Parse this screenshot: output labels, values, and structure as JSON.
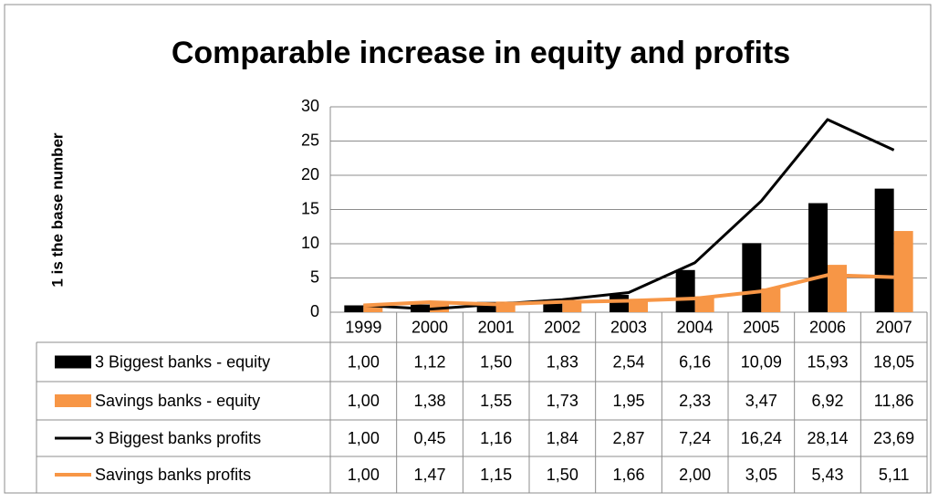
{
  "chart_data": {
    "type": "bar",
    "title": "Comparable increase in equity and profits",
    "y_label": "1 is the base number",
    "categories": [
      "1999",
      "2000",
      "2001",
      "2002",
      "2003",
      "2004",
      "2005",
      "2006",
      "2007"
    ],
    "ylim": [
      0,
      30
    ],
    "yticks": [
      0,
      5,
      10,
      15,
      20,
      25,
      30
    ],
    "grid": true,
    "series": [
      {
        "name": "3 Biggest banks - equity",
        "type": "bar",
        "color": "#000000",
        "values": [
          1.0,
          1.12,
          1.5,
          1.83,
          2.54,
          6.16,
          10.09,
          15.93,
          18.05
        ],
        "value_labels": [
          "1,00",
          "1,12",
          "1,50",
          "1,83",
          "2,54",
          "6,16",
          "10,09",
          "15,93",
          "18,05"
        ]
      },
      {
        "name": "Savings banks - equity",
        "type": "bar",
        "color": "#f79646",
        "values": [
          1.0,
          1.38,
          1.55,
          1.73,
          1.95,
          2.33,
          3.47,
          6.92,
          11.86
        ],
        "value_labels": [
          "1,00",
          "1,38",
          "1,55",
          "1,73",
          "1,95",
          "2,33",
          "3,47",
          "6,92",
          "11,86"
        ]
      },
      {
        "name": "3 Biggest banks profits",
        "type": "line",
        "color": "#000000",
        "values": [
          1.0,
          0.45,
          1.16,
          1.84,
          2.87,
          7.24,
          16.24,
          28.14,
          23.69
        ],
        "value_labels": [
          "1,00",
          "0,45",
          "1,16",
          "1,84",
          "2,87",
          "7,24",
          "16,24",
          "28,14",
          "23,69"
        ]
      },
      {
        "name": "Savings banks profits",
        "type": "line",
        "color": "#f79646",
        "values": [
          1.0,
          1.47,
          1.15,
          1.5,
          1.66,
          2.0,
          3.05,
          5.43,
          5.11
        ],
        "value_labels": [
          "1,00",
          "1,47",
          "1,15",
          "1,50",
          "1,66",
          "2,00",
          "3,05",
          "5,43",
          "5,11"
        ]
      }
    ]
  }
}
